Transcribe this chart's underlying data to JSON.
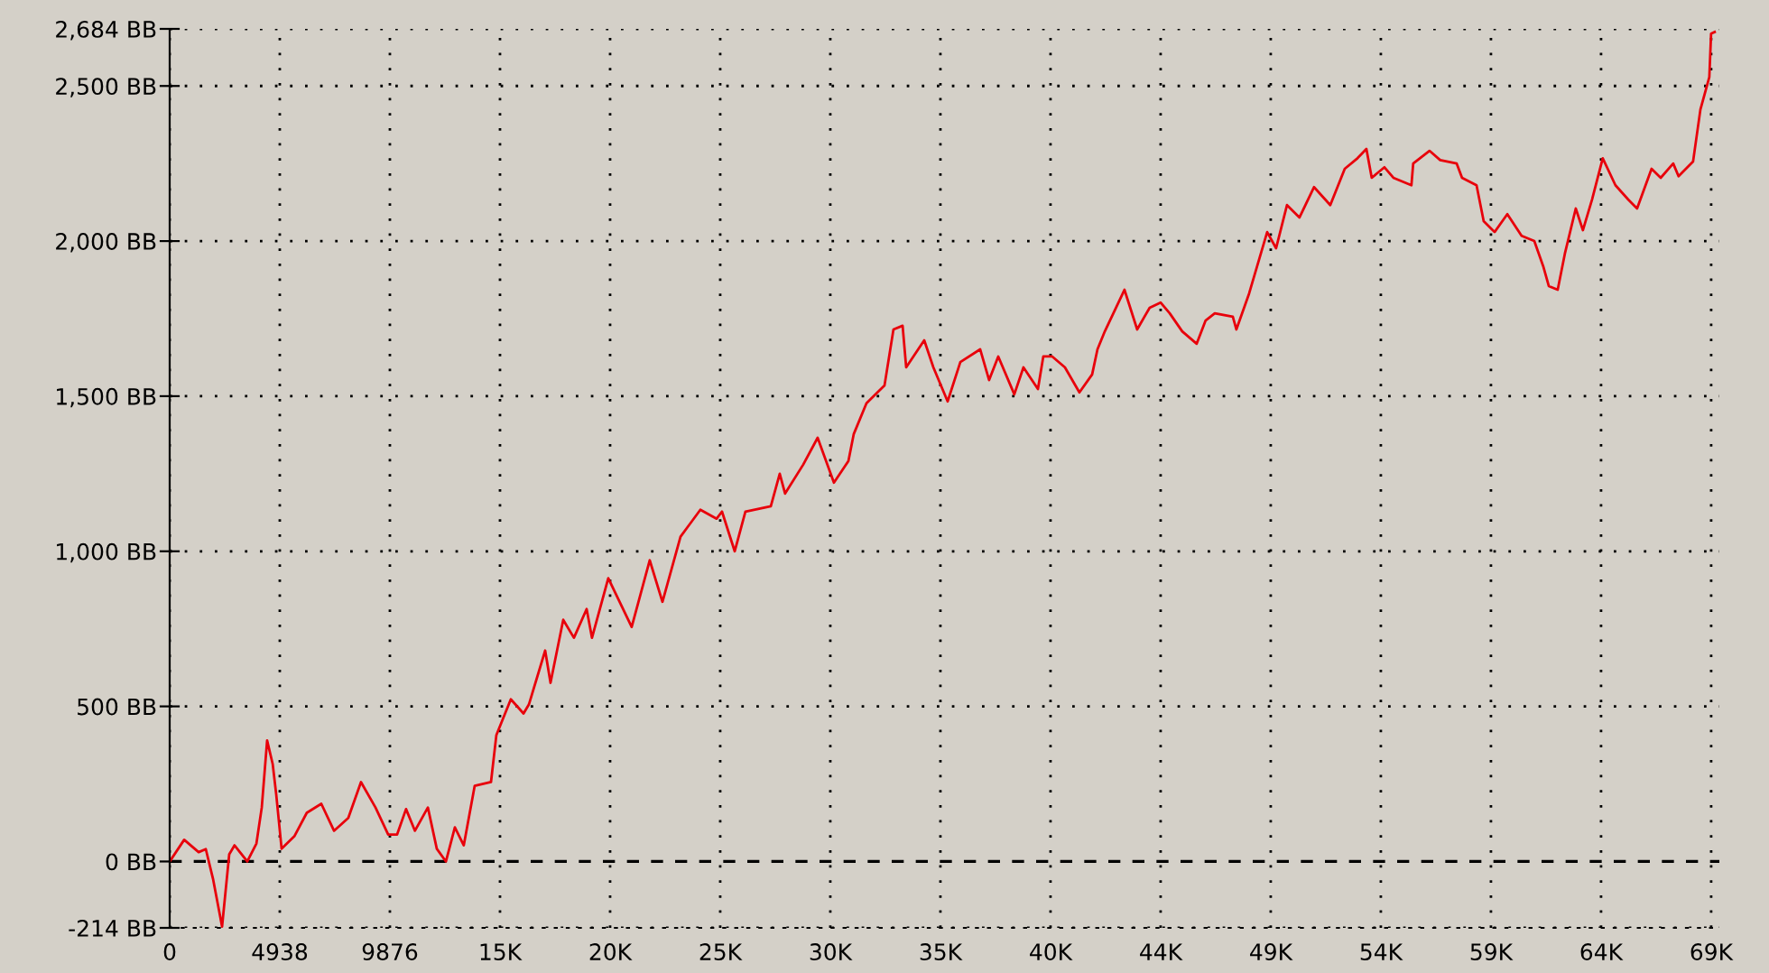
{
  "chart_data": {
    "type": "line",
    "x": [
      0,
      650,
      1300,
      1620,
      1950,
      2350,
      2670,
      2910,
      3480,
      3890,
      4130,
      4370,
      4620,
      4780,
      5020,
      5590,
      6150,
      6800,
      7370,
      8010,
      8580,
      9230,
      9800,
      10200,
      10600,
      11000,
      11580,
      11980,
      12390,
      12790,
      13190,
      13680,
      14410,
      14650,
      15300,
      15870,
      16110,
      16840,
      17080,
      17650,
      18130,
      18700,
      18940,
      19670,
      20720,
      21530,
      22100,
      22910,
      23800,
      24530,
      24770,
      25340,
      25820,
      26960,
      27360,
      27600,
      28410,
      29060,
      29790,
      30440,
      30680,
      31250,
      32060,
      32460,
      32870,
      33030,
      33840,
      34250,
      34890,
      35460,
      36350,
      36750,
      37160,
      37880,
      38290,
      38940,
      39180,
      39580,
      40150,
      40800,
      41370,
      41610,
      41940,
      42820,
      43390,
      43950,
      44440,
      44850,
      45410,
      46060,
      46460,
      46870,
      47680,
      47840,
      48410,
      49220,
      49620,
      50110,
      50670,
      51320,
      52050,
      52700,
      53270,
      53670,
      53910,
      54480,
      54880,
      55690,
      55770,
      56500,
      56980,
      57720,
      57960,
      58610,
      58930,
      59420,
      59990,
      60630,
      61200,
      61600,
      61850,
      62250,
      62570,
      63060,
      63380,
      63790,
      64270,
      64840,
      65410,
      65810,
      66460,
      66870,
      67430,
      67670,
      68320,
      68650,
      69050,
      69130,
      69290
    ],
    "series": [
      {
        "color": "#e8000b",
        "values": [
          0,
          70,
          30,
          40,
          -58,
          -210,
          23,
          52,
          0,
          58,
          174,
          390,
          314,
          215,
          41,
          81,
          157,
          186,
          99,
          140,
          256,
          174,
          87,
          87,
          169,
          99,
          174,
          41,
          0,
          110,
          52,
          244,
          256,
          407,
          523,
          477,
          506,
          680,
          576,
          779,
          721,
          814,
          721,
          913,
          756,
          971,
          837,
          1047,
          1134,
          1105,
          1128,
          1000,
          1128,
          1145,
          1250,
          1186,
          1279,
          1366,
          1221,
          1291,
          1378,
          1477,
          1535,
          1715,
          1727,
          1593,
          1680,
          1593,
          1483,
          1610,
          1651,
          1552,
          1628,
          1506,
          1593,
          1523,
          1628,
          1628,
          1593,
          1512,
          1570,
          1651,
          1709,
          1843,
          1715,
          1785,
          1802,
          1767,
          1709,
          1669,
          1744,
          1767,
          1756,
          1715,
          1831,
          2029,
          1977,
          2116,
          2076,
          2174,
          2116,
          2233,
          2267,
          2297,
          2204,
          2238,
          2204,
          2180,
          2250,
          2291,
          2261,
          2250,
          2204,
          2180,
          2064,
          2029,
          2087,
          2017,
          2000,
          1919,
          1855,
          1843,
          1959,
          2105,
          2035,
          2134,
          2267,
          2180,
          2134,
          2105,
          2233,
          2204,
          2250,
          2209,
          2256,
          2424,
          2529,
          2669,
          2674
        ]
      }
    ],
    "xlim": [
      0,
      69500
    ],
    "ylim": [
      -214,
      2684
    ],
    "xticks": [
      0,
      {
        "value": 4938,
        "label": "4938"
      },
      {
        "value": 9876,
        "label": "9876"
      },
      {
        "value": 14814,
        "label": "15K"
      },
      {
        "value": 19752,
        "label": "20K"
      },
      {
        "value": 24690,
        "label": "25K"
      },
      {
        "value": 29628,
        "label": "30K"
      },
      {
        "value": 34566,
        "label": "35K"
      },
      {
        "value": 39504,
        "label": "40K"
      },
      {
        "value": 44442,
        "label": "44K"
      },
      {
        "value": 49380,
        "label": "49K"
      },
      {
        "value": 54318,
        "label": "54K"
      },
      {
        "value": 59256,
        "label": "59K"
      },
      {
        "value": 64194,
        "label": "64K"
      },
      {
        "value": 69132,
        "label": "69K"
      }
    ],
    "yticks": [
      {
        "value": -214,
        "label": "-214 BB"
      },
      {
        "value": 0,
        "label": "0 BB"
      },
      {
        "value": 500,
        "label": "500 BB"
      },
      {
        "value": 1000,
        "label": "1,000 BB"
      },
      {
        "value": 1500,
        "label": "1,500 BB"
      },
      {
        "value": 2000,
        "label": "2,000 BB"
      },
      {
        "value": 2500,
        "label": "2,500 BB"
      },
      {
        "value": 2684,
        "label": "2,684 BB"
      }
    ],
    "ref_lines": [
      {
        "axis": "y",
        "value": 0,
        "color": "#000000",
        "line_style": "dashed"
      }
    ],
    "grid": true,
    "line_style": "solid",
    "marker": "none"
  }
}
